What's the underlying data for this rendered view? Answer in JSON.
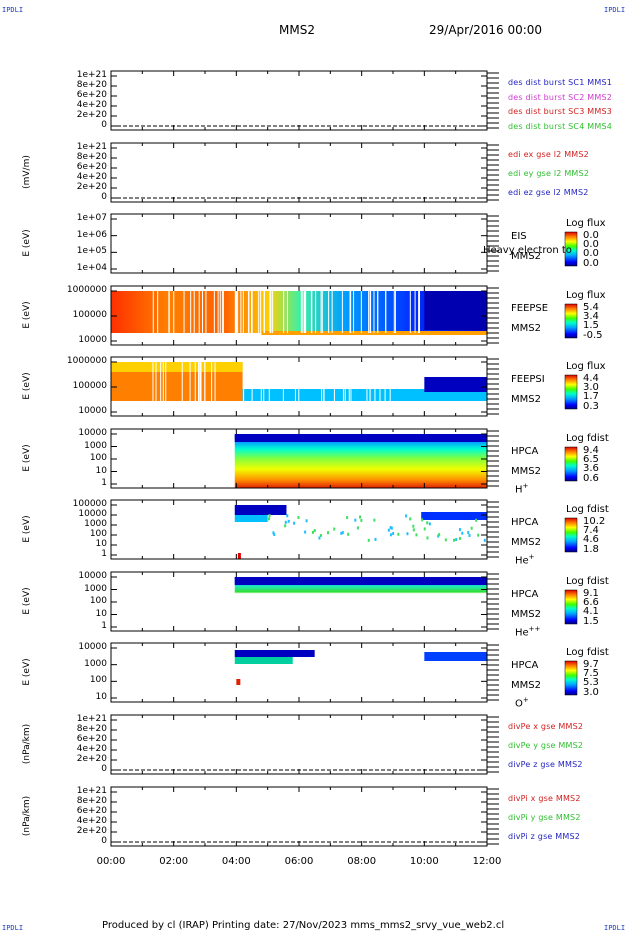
{
  "corners": {
    "tl": "IPDLI",
    "tr": "IPDLI",
    "bl": "IPDLI",
    "br": "IPDLI"
  },
  "header": {
    "spacecraft": "MMS2",
    "date": "29/Apr/2016 00:00"
  },
  "footer": {
    "text": "Produced by cl (IRAP)    Printing date: 27/Nov/2023    mms_mms2_srvy_vue_web2.cl"
  },
  "chart_data": {
    "type": "heatmap",
    "x_axis": {
      "ticks": [
        "00:00",
        "02:00",
        "04:00",
        "06:00",
        "08:00",
        "10:00",
        "12:00"
      ],
      "range_hours": [
        0,
        12
      ]
    },
    "panels": [
      {
        "id": "des",
        "type": "line",
        "ylabel": "",
        "yticks": [
          "1e+21",
          "8e+20",
          "6e+20",
          "4e+20",
          "2e+20",
          "0"
        ],
        "legend": [
          {
            "text": "des dist burst SC1 MMS1",
            "color": "#1f1fbf"
          },
          {
            "text": "des dist burst SC2 MMS2",
            "color": "#d23ad2"
          },
          {
            "text": "des dist burst SC3 MMS3",
            "color": "#d21f1f"
          },
          {
            "text": "des dist burst SC4 MMS4",
            "color": "#2fbf2f"
          }
        ]
      },
      {
        "id": "edi",
        "type": "line",
        "ylabel": "(mV/m)",
        "yticks": [
          "1e+21",
          "8e+20",
          "6e+20",
          "4e+20",
          "2e+20",
          "0"
        ],
        "legend": [
          {
            "text": "edi ex gse l2 MMS2",
            "color": "#d21f1f"
          },
          {
            "text": "edi ey gse l2 MMS2",
            "color": "#2fbf2f"
          },
          {
            "text": "edi ez gse l2 MMS2",
            "color": "#1f1fbf"
          }
        ]
      },
      {
        "id": "eis",
        "type": "heatmap",
        "ylabel": "E (eV)",
        "yticks": [
          "1e+07",
          "1e+06",
          "1e+05",
          "1e+04"
        ],
        "instrument": [
          "EIS",
          "MMS2"
        ],
        "overlay": "Heavy electron to",
        "colorbar": {
          "title": "Log flux",
          "ticks": [
            "0.0",
            "0.0",
            "0.0",
            "0.0"
          ]
        }
      },
      {
        "id": "feepse",
        "type": "heatmap",
        "ylabel": "E (eV)",
        "yticks": [
          "1000000",
          "100000",
          "10000"
        ],
        "instrument": [
          "FEEPSE",
          "MMS2"
        ],
        "colorbar": {
          "title": "Log flux",
          "ticks": [
            "5.4",
            "3.4",
            "1.5",
            "-0.5"
          ]
        }
      },
      {
        "id": "feepsi",
        "type": "heatmap",
        "ylabel": "E (eV)",
        "yticks": [
          "1000000",
          "100000",
          "10000"
        ],
        "instrument": [
          "FEEPSI",
          "MMS2"
        ],
        "colorbar": {
          "title": "Log flux",
          "ticks": [
            "4.4",
            "3.0",
            "1.7",
            "0.3"
          ]
        }
      },
      {
        "id": "hpca_h",
        "type": "heatmap",
        "ylabel": "E (eV)",
        "yticks": [
          "10000",
          "1000",
          "100",
          "10",
          "1"
        ],
        "instrument": [
          "HPCA",
          "MMS2"
        ],
        "species": "H",
        "charge": "+",
        "colorbar": {
          "title": "Log fdist",
          "ticks": [
            "9.4",
            "6.5",
            "3.6",
            "0.6"
          ]
        }
      },
      {
        "id": "hpca_he1",
        "type": "heatmap",
        "ylabel": "E (eV)",
        "yticks": [
          "100000",
          "10000",
          "1000",
          "100",
          "10",
          "1"
        ],
        "instrument": [
          "HPCA",
          "MMS2"
        ],
        "species": "He",
        "charge": "+",
        "colorbar": {
          "title": "Log fdist",
          "ticks": [
            "10.2",
            "7.4",
            "4.6",
            "1.8"
          ]
        }
      },
      {
        "id": "hpca_he2",
        "type": "heatmap",
        "ylabel": "E (eV)",
        "yticks": [
          "10000",
          "1000",
          "100",
          "10",
          "1"
        ],
        "instrument": [
          "HPCA",
          "MMS2"
        ],
        "species": "He",
        "charge": "++",
        "colorbar": {
          "title": "Log fdist",
          "ticks": [
            "9.1",
            "6.6",
            "4.1",
            "1.5"
          ]
        }
      },
      {
        "id": "hpca_o",
        "type": "heatmap",
        "ylabel": "E (eV)",
        "yticks": [
          "10000",
          "1000",
          "100",
          "10"
        ],
        "instrument": [
          "HPCA",
          "MMS2"
        ],
        "species": "O",
        "charge": "+",
        "colorbar": {
          "title": "Log fdist",
          "ticks": [
            "9.7",
            "7.5",
            "5.3",
            "3.0"
          ]
        }
      },
      {
        "id": "divpe",
        "type": "line",
        "ylabel": "(nPa/km)",
        "yticks": [
          "1e+21",
          "8e+20",
          "6e+20",
          "4e+20",
          "2e+20",
          "0"
        ],
        "legend": [
          {
            "text": "divPe x gse MMS2",
            "color": "#d21f1f"
          },
          {
            "text": "divPe y gse MMS2",
            "color": "#2fbf2f"
          },
          {
            "text": "divPe z gse MMS2",
            "color": "#1f1fbf"
          }
        ]
      },
      {
        "id": "divpi",
        "type": "line",
        "ylabel": "(nPa/km)",
        "yticks": [
          "1e+21",
          "8e+20",
          "6e+20",
          "4e+20",
          "2e+20",
          "0"
        ],
        "legend": [
          {
            "text": "divPi x gse MMS2",
            "color": "#d21f1f"
          },
          {
            "text": "divPi y gse MMS2",
            "color": "#2fbf2f"
          },
          {
            "text": "divPi z gse MMS2",
            "color": "#1f1fbf"
          }
        ]
      }
    ]
  }
}
